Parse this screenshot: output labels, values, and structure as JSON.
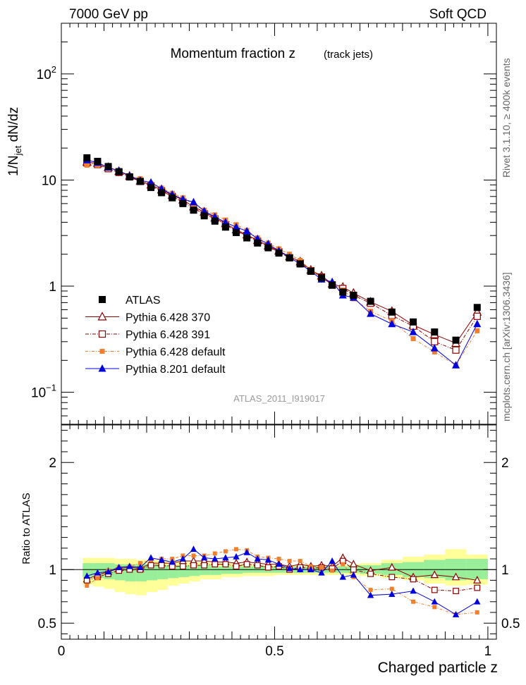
{
  "header": {
    "left": "7000 GeV pp",
    "right": "Soft QCD"
  },
  "side_labels": {
    "rivet": "Rivet 3.1.10, ≥ 400k events",
    "mcplots": "mcplots.cern.ch [arXiv:1306.3436]"
  },
  "chart_data": [
    {
      "type": "scatter",
      "title": "Momentum fraction z",
      "title_suffix": "(track jets)",
      "ylabel_main": "1/N",
      "ylabel_sub": "jet",
      "ylabel_tail": " dN/dz",
      "watermark": "ATLAS_2011_I919017",
      "xlim": [
        0,
        1.02
      ],
      "ylim": [
        0.05,
        300
      ],
      "yscale": "log",
      "yticks": [
        {
          "value": 0.1,
          "base": "10",
          "exp": "−1"
        },
        {
          "value": 1,
          "base": "1",
          "exp": ""
        },
        {
          "value": 10,
          "base": "10",
          "exp": ""
        },
        {
          "value": 100,
          "base": "10",
          "exp": "2"
        }
      ],
      "legend_position": "bottom-left",
      "x": [
        0.06,
        0.085,
        0.11,
        0.135,
        0.16,
        0.185,
        0.21,
        0.235,
        0.26,
        0.285,
        0.31,
        0.335,
        0.36,
        0.385,
        0.41,
        0.435,
        0.46,
        0.485,
        0.51,
        0.535,
        0.56,
        0.585,
        0.61,
        0.635,
        0.66,
        0.685,
        0.725,
        0.775,
        0.825,
        0.875,
        0.925,
        0.975
      ],
      "series": [
        {
          "name": "ATLAS",
          "marker": "square-filled",
          "color": "#000000",
          "values": [
            16.2,
            15.0,
            13.4,
            12.0,
            10.7,
            9.7,
            8.5,
            7.6,
            6.8,
            6.0,
            5.2,
            4.6,
            4.1,
            3.6,
            3.2,
            2.85,
            2.55,
            2.3,
            2.05,
            1.85,
            1.62,
            1.38,
            1.2,
            1.02,
            0.88,
            0.82,
            0.72,
            0.57,
            0.46,
            0.37,
            0.31,
            0.63
          ]
        },
        {
          "name": "Pythia 6.428 370",
          "marker": "triangle-open",
          "color": "#8b0000",
          "values": [
            14.8,
            14.3,
            13.2,
            12.1,
            10.9,
            9.8,
            9.0,
            8.1,
            7.2,
            6.5,
            5.6,
            5.0,
            4.4,
            3.9,
            3.4,
            3.05,
            2.7,
            2.4,
            2.15,
            1.9,
            1.7,
            1.42,
            1.25,
            1.05,
            0.98,
            0.86,
            0.71,
            0.58,
            0.43,
            0.35,
            0.29,
            0.57
          ]
        },
        {
          "name": "Pythia 6.428 391",
          "marker": "square-open",
          "color": "#8b0000",
          "values": [
            14.5,
            14.0,
            12.8,
            11.8,
            10.7,
            9.7,
            8.8,
            7.9,
            7.0,
            6.2,
            5.4,
            4.8,
            4.3,
            3.8,
            3.3,
            3.0,
            2.65,
            2.35,
            2.1,
            1.85,
            1.65,
            1.4,
            1.22,
            1.03,
            0.95,
            0.82,
            0.69,
            0.53,
            0.42,
            0.3,
            0.25,
            0.52
          ]
        },
        {
          "name": "Pythia 6.428 default",
          "marker": "square-small-filled",
          "color": "#f08030",
          "values": [
            13.8,
            13.8,
            13.3,
            12.2,
            11.0,
            10.3,
            9.3,
            8.4,
            7.5,
            6.8,
            5.9,
            5.2,
            4.7,
            4.2,
            3.8,
            3.35,
            2.85,
            2.55,
            2.25,
            2.0,
            1.75,
            1.42,
            1.22,
            1.01,
            0.92,
            0.76,
            0.58,
            0.47,
            0.32,
            0.24,
            0.18,
            0.38
          ]
        },
        {
          "name": "Pythia 8.201 default",
          "marker": "triangle-filled",
          "color": "#0000dd",
          "values": [
            15.4,
            14.6,
            13.1,
            12.2,
            11.0,
            9.9,
            9.5,
            8.3,
            7.3,
            6.6,
            6.2,
            5.1,
            4.5,
            4.0,
            3.6,
            3.3,
            2.8,
            2.5,
            2.15,
            1.86,
            1.62,
            1.38,
            1.16,
            1.1,
            0.82,
            0.78,
            0.55,
            0.44,
            0.37,
            0.26,
            0.18,
            0.44
          ]
        }
      ]
    },
    {
      "type": "scatter",
      "xlabel": "Charged particle z",
      "ylabel": "Ratio to ATLAS",
      "xlim": [
        0,
        1.02
      ],
      "ylim": [
        0.35,
        2.35
      ],
      "xticks": [
        {
          "value": 0,
          "label": "0"
        },
        {
          "value": 0.5,
          "label": "0.5"
        },
        {
          "value": 1,
          "label": "1"
        }
      ],
      "yticks": [
        {
          "value": 0.5,
          "label": "0.5"
        },
        {
          "value": 1,
          "label": "1"
        },
        {
          "value": 2,
          "label": "2"
        }
      ],
      "x_edges": [
        0.05,
        0.075,
        0.1,
        0.125,
        0.15,
        0.175,
        0.2,
        0.225,
        0.25,
        0.275,
        0.3,
        0.325,
        0.35,
        0.375,
        0.4,
        0.425,
        0.45,
        0.475,
        0.5,
        0.525,
        0.55,
        0.575,
        0.6,
        0.625,
        0.65,
        0.675,
        0.7,
        0.75,
        0.8,
        0.85,
        0.9,
        0.95,
        1.0
      ],
      "band_green": [
        [
          0.93,
          1.06
        ],
        [
          0.92,
          1.06
        ],
        [
          0.91,
          1.06
        ],
        [
          0.9,
          1.05
        ],
        [
          0.89,
          1.05
        ],
        [
          0.89,
          1.05
        ],
        [
          0.9,
          1.05
        ],
        [
          0.91,
          1.04
        ],
        [
          0.92,
          1.04
        ],
        [
          0.93,
          1.04
        ],
        [
          0.94,
          1.04
        ],
        [
          0.95,
          1.04
        ],
        [
          0.95,
          1.03
        ],
        [
          0.96,
          1.03
        ],
        [
          0.96,
          1.03
        ],
        [
          0.97,
          1.03
        ],
        [
          0.97,
          1.03
        ],
        [
          0.97,
          1.03
        ],
        [
          0.97,
          1.03
        ],
        [
          0.97,
          1.03
        ],
        [
          0.97,
          1.03
        ],
        [
          0.97,
          1.03
        ],
        [
          0.97,
          1.03
        ],
        [
          0.97,
          1.03
        ],
        [
          0.97,
          1.03
        ],
        [
          0.97,
          1.04
        ],
        [
          0.96,
          1.04
        ],
        [
          0.95,
          1.06
        ],
        [
          0.93,
          1.07
        ],
        [
          0.92,
          1.09
        ],
        [
          0.9,
          1.1
        ],
        [
          0.91,
          1.1
        ]
      ],
      "band_yellow": [
        [
          0.86,
          1.11
        ],
        [
          0.84,
          1.11
        ],
        [
          0.82,
          1.11
        ],
        [
          0.79,
          1.1
        ],
        [
          0.77,
          1.1
        ],
        [
          0.76,
          1.09
        ],
        [
          0.79,
          1.09
        ],
        [
          0.81,
          1.09
        ],
        [
          0.85,
          1.08
        ],
        [
          0.87,
          1.08
        ],
        [
          0.89,
          1.07
        ],
        [
          0.91,
          1.07
        ],
        [
          0.91,
          1.06
        ],
        [
          0.93,
          1.06
        ],
        [
          0.93,
          1.05
        ],
        [
          0.94,
          1.05
        ],
        [
          0.94,
          1.04
        ],
        [
          0.94,
          1.04
        ],
        [
          0.95,
          1.04
        ],
        [
          0.95,
          1.04
        ],
        [
          0.95,
          1.04
        ],
        [
          0.95,
          1.04
        ],
        [
          0.95,
          1.04
        ],
        [
          0.95,
          1.04
        ],
        [
          0.95,
          1.04
        ],
        [
          0.95,
          1.05
        ],
        [
          0.94,
          1.06
        ],
        [
          0.92,
          1.09
        ],
        [
          0.9,
          1.12
        ],
        [
          0.87,
          1.14
        ],
        [
          0.85,
          1.19
        ],
        [
          0.86,
          1.14
        ]
      ],
      "ratio_series": [
        {
          "name": "Pythia 6.428 370",
          "marker": "triangle-open",
          "color": "#8b0000",
          "values": [
            0.91,
            0.95,
            0.98,
            1.01,
            1.02,
            1.01,
            1.06,
            1.06,
            1.06,
            1.08,
            1.08,
            1.08,
            1.07,
            1.07,
            1.06,
            1.07,
            1.06,
            1.05,
            1.05,
            1.03,
            1.05,
            1.03,
            1.04,
            1.03,
            1.11,
            1.05,
            0.99,
            1.02,
            0.93,
            0.95,
            0.93,
            0.9
          ]
        },
        {
          "name": "Pythia 6.428 391",
          "marker": "square-open",
          "color": "#8b0000",
          "values": [
            0.9,
            0.93,
            0.96,
            0.99,
            1.0,
            1.0,
            1.04,
            1.04,
            1.03,
            1.03,
            1.04,
            1.04,
            1.05,
            1.05,
            1.03,
            1.05,
            1.04,
            1.02,
            1.03,
            1.0,
            1.02,
            1.01,
            1.02,
            1.01,
            1.08,
            1.0,
            0.96,
            0.93,
            0.91,
            0.81,
            0.8,
            0.83
          ]
        },
        {
          "name": "Pythia 6.428 default",
          "marker": "square-small-filled",
          "color": "#f08030",
          "values": [
            0.85,
            0.92,
            0.99,
            1.02,
            1.03,
            1.06,
            1.09,
            1.1,
            1.1,
            1.13,
            1.13,
            1.13,
            1.15,
            1.17,
            1.19,
            1.18,
            1.12,
            1.11,
            1.1,
            1.08,
            1.08,
            1.03,
            1.02,
            0.99,
            1.05,
            0.93,
            0.81,
            0.82,
            0.7,
            0.65,
            0.58,
            0.6
          ]
        },
        {
          "name": "Pythia 8.201 default",
          "marker": "triangle-filled",
          "color": "#0000dd",
          "values": [
            0.94,
            0.97,
            0.98,
            1.02,
            1.03,
            1.02,
            1.11,
            1.09,
            1.07,
            1.1,
            1.19,
            1.11,
            1.1,
            1.11,
            1.12,
            1.16,
            1.1,
            1.09,
            1.05,
            1.01,
            1.0,
            1.0,
            0.97,
            1.08,
            0.93,
            0.95,
            0.76,
            0.77,
            0.8,
            0.7,
            0.58,
            0.7
          ]
        }
      ]
    }
  ]
}
